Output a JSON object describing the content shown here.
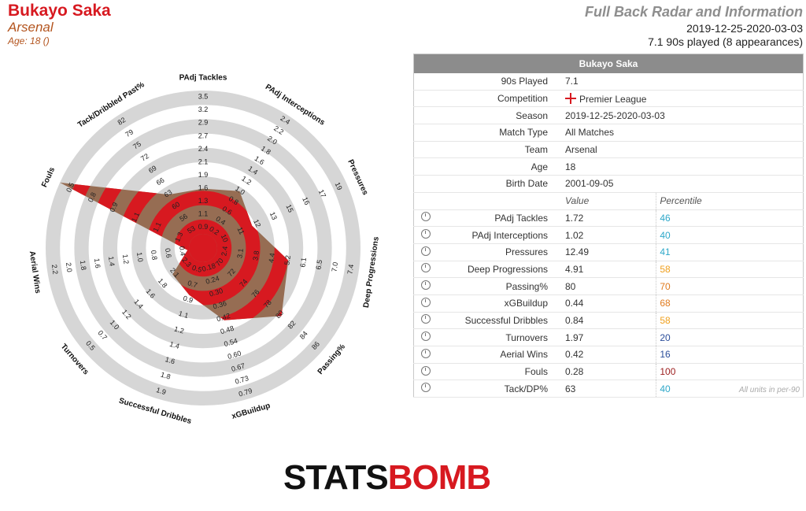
{
  "header": {
    "player_name": "Bukayo Saka",
    "team": "Arsenal",
    "age_line": "Age: 18 ()",
    "report_title": "Full Back Radar and Information",
    "date_range": "2019-12-25-2020-03-03",
    "played_line": "7.1 90s played (8 appearances)"
  },
  "table": {
    "title": "Bukayo Saka",
    "info_rows": [
      {
        "label": "90s Played",
        "value": "7.1"
      },
      {
        "label": "Competition",
        "value": "Premier League"
      },
      {
        "label": "Season",
        "value": "2019-12-25-2020-03-03"
      },
      {
        "label": "Match Type",
        "value": "All Matches"
      },
      {
        "label": "Team",
        "value": "Arsenal"
      },
      {
        "label": "Age",
        "value": "18"
      },
      {
        "label": "Birth Date",
        "value": "2001-09-05"
      }
    ],
    "value_header": "Value",
    "percentile_header": "Percentile",
    "metric_rows": [
      {
        "label": "PAdj Tackles",
        "value": "1.72",
        "percentile": "46",
        "color": "#2ea8c9"
      },
      {
        "label": "PAdj Interceptions",
        "value": "1.02",
        "percentile": "40",
        "color": "#2ea8c9"
      },
      {
        "label": "Pressures",
        "value": "12.49",
        "percentile": "41",
        "color": "#2ea8c9"
      },
      {
        "label": "Deep Progressions",
        "value": "4.91",
        "percentile": "58",
        "color": "#f0a01e"
      },
      {
        "label": "Passing%",
        "value": "80",
        "percentile": "70",
        "color": "#e07b1e"
      },
      {
        "label": "xGBuildup",
        "value": "0.44",
        "percentile": "68",
        "color": "#e07b1e"
      },
      {
        "label": "Successful Dribbles",
        "value": "0.84",
        "percentile": "58",
        "color": "#f0a01e"
      },
      {
        "label": "Turnovers",
        "value": "1.97",
        "percentile": "20",
        "color": "#2b4d9a"
      },
      {
        "label": "Aerial Wins",
        "value": "0.42",
        "percentile": "16",
        "color": "#2b4d9a"
      },
      {
        "label": "Fouls",
        "value": "0.28",
        "percentile": "100",
        "color": "#9b1b1b"
      },
      {
        "label": "Tack/DP%",
        "value": "63",
        "percentile": "40",
        "color": "#2ea8c9"
      }
    ],
    "units_note": "All units in per-90"
  },
  "logo": {
    "part1": "STATS",
    "part2": "BOMB"
  },
  "chart_data": {
    "type": "radar",
    "fill_color": "#d71920",
    "overlay_color": "#8b5a3c",
    "ring_color": "#d6d6d6",
    "axes": [
      {
        "name": "PAdj Tackles",
        "ticks": [
          "0.9",
          "1.1",
          "1.3",
          "1.6",
          "1.9",
          "2.1",
          "2.4",
          "2.7",
          "2.9",
          "3.2",
          "3.5"
        ],
        "value": 1.72,
        "reversed": false
      },
      {
        "name": "PAdj Interceptions",
        "ticks": [
          "0.2",
          "0.4",
          "0.6",
          "0.8",
          "1.0",
          "1.2",
          "1.4",
          "1.6",
          "1.8",
          "2.0",
          "2.2",
          "2.4"
        ],
        "value": 1.02,
        "reversed": false
      },
      {
        "name": "Pressures",
        "ticks": [
          "10",
          "11",
          "12",
          "13",
          "15",
          "16",
          "17",
          "19"
        ],
        "value": 12.49,
        "reversed": false
      },
      {
        "name": "Deep Progressions",
        "ticks": [
          "2.4",
          "3.1",
          "3.8",
          "4.4",
          "5.2",
          "6.1",
          "6.5",
          "7.0",
          "7.4"
        ],
        "value": 4.91,
        "reversed": false
      },
      {
        "name": "Passing%",
        "ticks": [
          "70",
          "72",
          "74",
          "76",
          "78",
          "80",
          "82",
          "84",
          "86"
        ],
        "value": 80,
        "reversed": false
      },
      {
        "name": "xGBuildup",
        "ticks": [
          "0.18",
          "0.24",
          "0.30",
          "0.36",
          "0.42",
          "0.48",
          "0.54",
          "0.60",
          "0.67",
          "0.73",
          "0.79"
        ],
        "value": 0.44,
        "reversed": false
      },
      {
        "name": "Successful Dribbles",
        "ticks": [
          "0.5",
          "0.7",
          "0.9",
          "1.1",
          "1.2",
          "1.4",
          "1.6",
          "1.8",
          "1.9"
        ],
        "value": 0.84,
        "reversed": false
      },
      {
        "name": "Turnovers",
        "ticks": [
          "2.3",
          "2.1",
          "1.8",
          "1.6",
          "1.4",
          "1.2",
          "1.0",
          "0.7",
          "0.5"
        ],
        "value": 1.97,
        "reversed": true
      },
      {
        "name": "Aerial Wins",
        "ticks": [
          "0.4",
          "0.6",
          "0.8",
          "1.0",
          "1.2",
          "1.4",
          "1.6",
          "1.8",
          "2.0",
          "2.2"
        ],
        "value": 0.42,
        "reversed": false
      },
      {
        "name": "Fouls",
        "ticks": [
          "1.3",
          "1.1",
          "1.1",
          "0.9",
          "0.8",
          "0.5"
        ],
        "value": 0.28,
        "reversed": true
      },
      {
        "name": "Tack/Dribbled Past%",
        "ticks": [
          "53",
          "56",
          "60",
          "63",
          "66",
          "69",
          "72",
          "75",
          "79",
          "82"
        ],
        "value": 63,
        "reversed": false
      }
    ]
  }
}
